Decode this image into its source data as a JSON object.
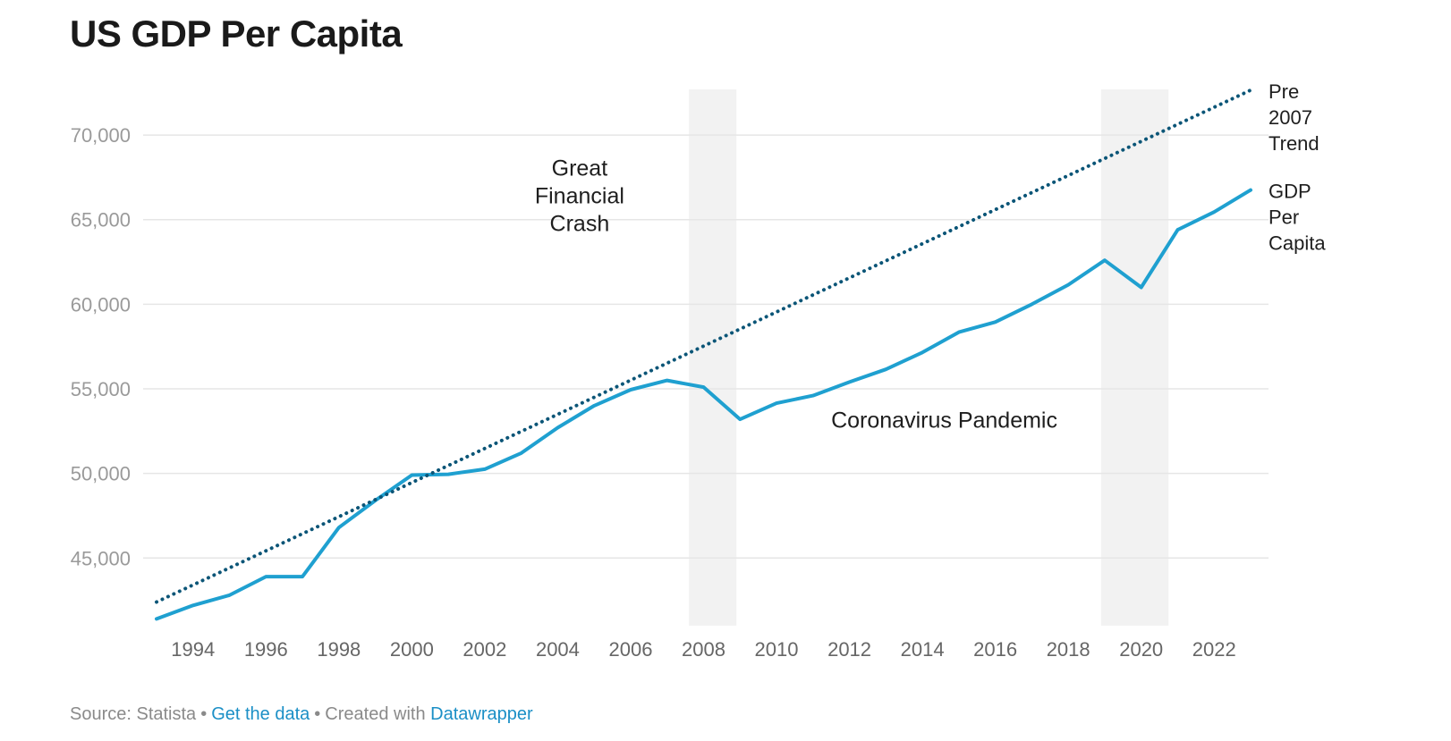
{
  "title": "US GDP Per Capita",
  "footer": {
    "source": "Source: Statista",
    "get_data": "Get the data",
    "created_with": "Created with",
    "datawrapper": "Datawrapper",
    "separator": "•"
  },
  "chart_data": {
    "type": "line",
    "title": "US GDP Per Capita",
    "xlabel": "",
    "ylabel": "",
    "xlim": [
      1993,
      2023
    ],
    "ylim": [
      41000,
      72700
    ],
    "x_ticks": [
      1994,
      1996,
      1998,
      2000,
      2002,
      2004,
      2006,
      2008,
      2010,
      2012,
      2014,
      2016,
      2018,
      2020,
      2022
    ],
    "y_ticks": [
      45000,
      50000,
      55000,
      60000,
      65000,
      70000
    ],
    "y_tick_labels": [
      "45,000",
      "50,000",
      "55,000",
      "60,000",
      "65,000",
      "70,000"
    ],
    "grid": "horizontal",
    "colors": {
      "gdp": "#1fa0d0",
      "trend": "#0b5577",
      "recession": "#f2f2f2",
      "grid": "#e6e6e6"
    },
    "series": [
      {
        "name": "GDP Per Capita",
        "label_lines": [
          "GDP",
          "Per",
          "Capita"
        ],
        "style": "solid",
        "x": [
          1993,
          1994,
          1995,
          1996,
          1997,
          1998,
          1999,
          2000,
          2001,
          2002,
          2003,
          2004,
          2005,
          2006,
          2007,
          2008,
          2009,
          2010,
          2011,
          2012,
          2013,
          2014,
          2015,
          2016,
          2017,
          2018,
          2019,
          2020,
          2021,
          2022,
          2023
        ],
        "values": [
          41400,
          42200,
          42800,
          43900,
          43900,
          46800,
          48400,
          49900,
          49950,
          50250,
          51200,
          52700,
          54000,
          54950,
          55500,
          55100,
          53200,
          54150,
          54600,
          55400,
          56150,
          57150,
          58350,
          58950,
          60000,
          61150,
          62600,
          61000,
          64400,
          65450,
          66750
        ]
      },
      {
        "name": "Pre 2007 Trend",
        "label_lines": [
          "Pre",
          "2007",
          "Trend"
        ],
        "style": "dotted",
        "x": [
          1993,
          2023
        ],
        "values": [
          42400,
          72650
        ]
      }
    ],
    "shaded_regions": [
      {
        "x_start": 2007.6,
        "x_end": 2008.9
      },
      {
        "x_start": 2018.9,
        "x_end": 2020.75
      }
    ],
    "annotations": [
      {
        "lines": [
          "Great",
          "Financial",
          "Crash"
        ],
        "x": 2004.6,
        "y": 67600
      },
      {
        "lines": [
          "Coronavirus Pandemic"
        ],
        "x": 2014.6,
        "y": 52700
      }
    ]
  }
}
